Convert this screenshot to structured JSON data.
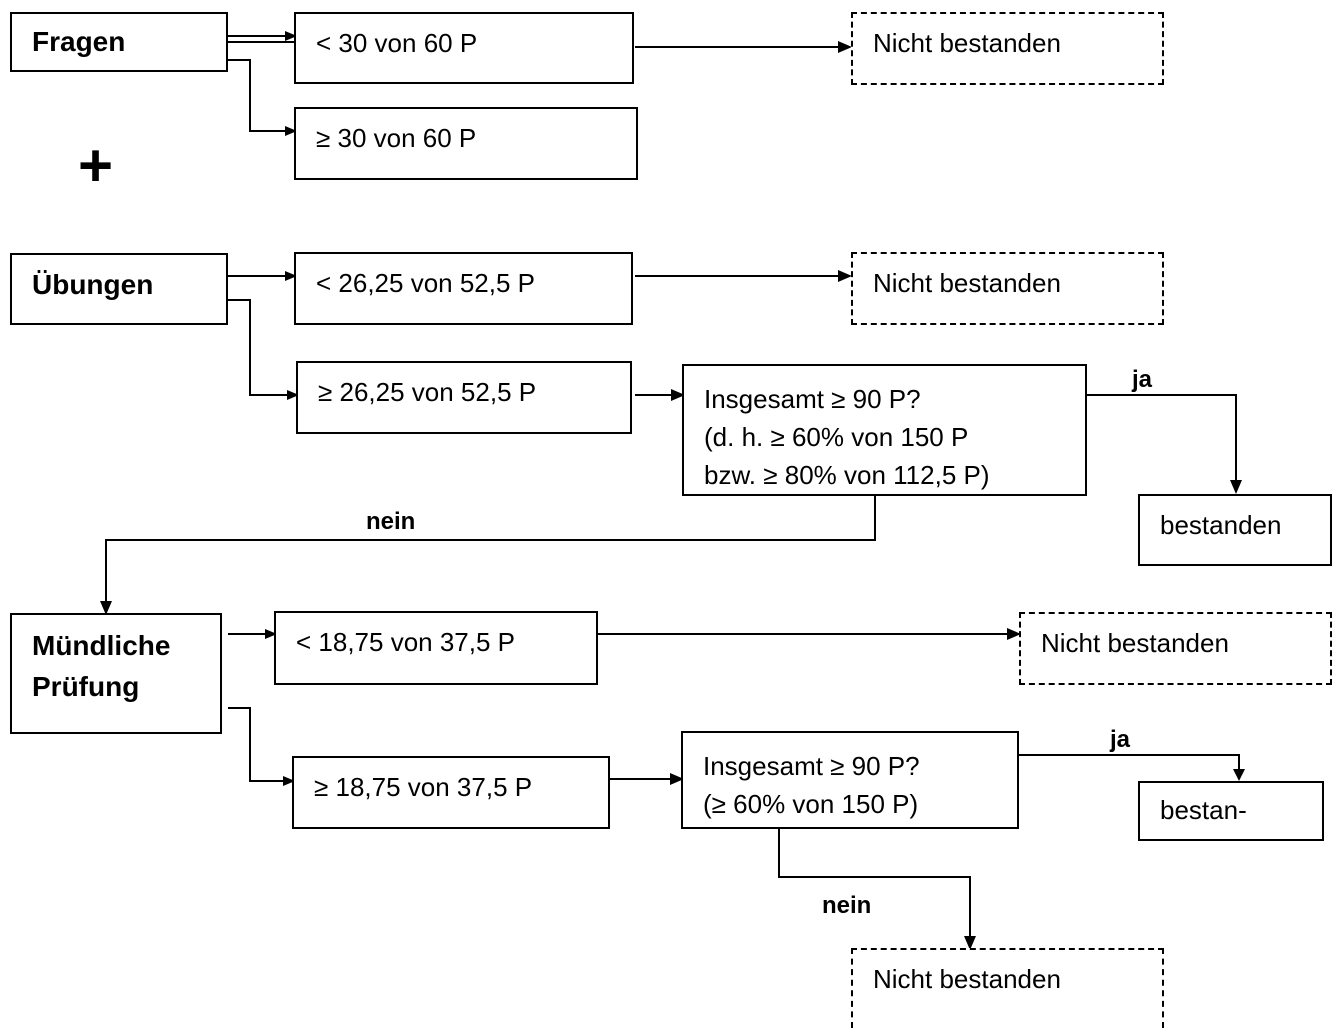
{
  "categories": {
    "fragen": "Fragen",
    "uebungen": "Übungen",
    "muendlich_line1": "Mündliche",
    "muendlich_line2": "Prüfung"
  },
  "plus_symbol": "+",
  "conditions": {
    "fragen_fail": "< 30 von 60 P",
    "fragen_pass": "≥ 30 von 60 P",
    "uebungen_fail": "< 26,25 von 52,5  P",
    "uebungen_pass": "≥ 26,25 von 52,5 P",
    "muendlich_fail": "< 18,75 von 37,5 P",
    "muendlich_pass": "≥ 18,75 von 37,5 P"
  },
  "decisions": {
    "first": [
      "Insgesamt ≥ 90 P?",
      "(d. h. ≥ 60% von 150 P",
      "bzw. ≥ 80% von 112,5 P)"
    ],
    "second": [
      "Insgesamt ≥ 90 P?",
      "(≥ 60% von 150  P)"
    ]
  },
  "results": {
    "fail": "Nicht bestanden",
    "pass_full": "bestanden",
    "pass_cut": "bestan-"
  },
  "edge_labels": {
    "yes": "ja",
    "no": "nein"
  }
}
